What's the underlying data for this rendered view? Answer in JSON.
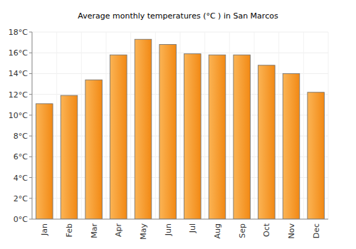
{
  "chart_data": {
    "type": "bar",
    "title": "Average monthly temperatures (°C ) in San Marcos",
    "categories": [
      "Jan",
      "Feb",
      "Mar",
      "Apr",
      "May",
      "Jun",
      "Jul",
      "Aug",
      "Sep",
      "Oct",
      "Nov",
      "Dec"
    ],
    "values": [
      11.1,
      11.9,
      13.4,
      15.8,
      17.3,
      16.8,
      15.9,
      15.8,
      15.8,
      14.8,
      14.0,
      12.2
    ],
    "color": "#f99b1c",
    "ylim": [
      0,
      18
    ],
    "yticks": [
      {
        "value": 0,
        "label": "0°C"
      },
      {
        "value": 2,
        "label": "2°C"
      },
      {
        "value": 4,
        "label": "4°C"
      },
      {
        "value": 6,
        "label": "6°C"
      },
      {
        "value": 8,
        "label": "8°C"
      },
      {
        "value": 10,
        "label": "10°C"
      },
      {
        "value": 12,
        "label": "12°C"
      },
      {
        "value": 14,
        "label": "14°C"
      },
      {
        "value": 16,
        "label": "16°C"
      },
      {
        "value": 18,
        "label": "18°C"
      }
    ],
    "grid": true
  }
}
